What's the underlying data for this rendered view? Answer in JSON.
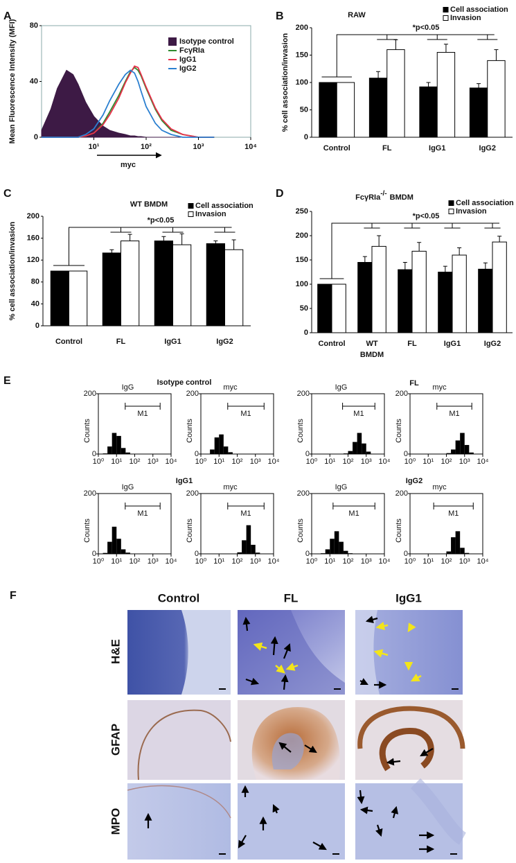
{
  "chart_data": [
    {
      "type": "line",
      "panel": "A",
      "ylabel": "Mean Fluorescence Intensity (MFI)",
      "xlabel": "myc",
      "xscale": "log",
      "xlim": [
        1,
        10000
      ],
      "ylim": [
        0,
        80
      ],
      "yticks": [
        0,
        40,
        80
      ],
      "xticks": [
        {
          "value": 10,
          "label": "10¹"
        },
        {
          "value": 100,
          "label": "10²"
        },
        {
          "value": 1000,
          "label": "10³"
        },
        {
          "value": 10000,
          "label": "10⁴"
        }
      ],
      "x": [
        1,
        1.5,
        2,
        3,
        4,
        5,
        7,
        10,
        15,
        20,
        30,
        40,
        50,
        60,
        70,
        80,
        100,
        150,
        200,
        300,
        500,
        1000,
        2000
      ],
      "legend": "upper right",
      "series": [
        {
          "name": "Isotype control",
          "color": "#3d1a45",
          "fill": true,
          "values": [
            5,
            20,
            35,
            48,
            45,
            38,
            25,
            15,
            8,
            5,
            3,
            2,
            1,
            1,
            0.5,
            0.5,
            0,
            0,
            0,
            0,
            0,
            0,
            0
          ]
        },
        {
          "name": "FcγRIa",
          "color": "#2e8b2e",
          "values": [
            0,
            0,
            0,
            0,
            0,
            0,
            1,
            3,
            10,
            18,
            30,
            40,
            47,
            50,
            48,
            44,
            35,
            20,
            12,
            5,
            2,
            0,
            0
          ]
        },
        {
          "name": "IgG1",
          "color": "#e8304a",
          "values": [
            0,
            0,
            0,
            0,
            0,
            0,
            1,
            3,
            9,
            16,
            28,
            39,
            46,
            51,
            50,
            45,
            36,
            21,
            13,
            6,
            2,
            0,
            0
          ]
        },
        {
          "name": "IgG2",
          "color": "#2a7fd0",
          "values": [
            0,
            0,
            0,
            0,
            0,
            0,
            2,
            6,
            16,
            26,
            38,
            45,
            48,
            46,
            40,
            33,
            22,
            10,
            5,
            2,
            0,
            0,
            0
          ]
        }
      ]
    },
    {
      "type": "bar",
      "panel": "B",
      "title": "RAW",
      "ylabel": "% cell association/invasion",
      "annotation": "*p<0.05",
      "legend": "upper right",
      "categories": [
        "Control",
        "FL",
        "IgG1",
        "IgG2"
      ],
      "ylim": [
        0,
        200
      ],
      "yticks": [
        0,
        50,
        100,
        150,
        200
      ],
      "series": [
        {
          "name": "Cell association",
          "color": "#000000",
          "values": [
            100,
            108,
            92,
            90
          ],
          "errors": [
            0,
            12,
            8,
            8
          ]
        },
        {
          "name": "Invasion",
          "color": "#ffffff",
          "values": [
            100,
            160,
            155,
            140
          ],
          "errors": [
            0,
            18,
            15,
            20
          ]
        }
      ]
    },
    {
      "type": "bar",
      "panel": "C",
      "title": "WT BMDM",
      "ylabel": "% cell association/invasion",
      "annotation": "*p<0.05",
      "legend": "upper right",
      "categories": [
        "Control",
        "FL",
        "IgG1",
        "IgG2"
      ],
      "ylim": [
        0,
        200
      ],
      "yticks": [
        0,
        40,
        80,
        120,
        160,
        200
      ],
      "series": [
        {
          "name": "Cell association",
          "color": "#000000",
          "values": [
            100,
            133,
            155,
            150
          ],
          "errors": [
            0,
            6,
            8,
            5
          ]
        },
        {
          "name": "Invasion",
          "color": "#ffffff",
          "values": [
            100,
            155,
            148,
            139
          ],
          "errors": [
            0,
            12,
            20,
            18
          ]
        }
      ]
    },
    {
      "type": "bar",
      "panel": "D",
      "title": [
        "FcγRIa",
        "-/-",
        "BMDM"
      ],
      "annotation": "*p<0.05",
      "legend": "upper right",
      "categories": [
        "Control",
        "WT BMDM",
        "FL",
        "IgG1",
        "IgG2"
      ],
      "ylim": [
        0,
        250
      ],
      "yticks": [
        0,
        50,
        100,
        150,
        200,
        250
      ],
      "series": [
        {
          "name": "Cell association",
          "color": "#000000",
          "values": [
            100,
            145,
            130,
            125,
            131
          ],
          "errors": [
            0,
            12,
            15,
            12,
            13
          ]
        },
        {
          "name": "Invasion",
          "color": "#ffffff",
          "values": [
            100,
            178,
            168,
            160,
            187
          ],
          "errors": [
            0,
            22,
            18,
            15,
            12
          ]
        }
      ]
    },
    {
      "type": "histogram",
      "title": "IgG",
      "ylabel": "Counts",
      "xscale": "log",
      "xlim": [
        1,
        10000
      ],
      "ylim": [
        0,
        200
      ],
      "yticks": [
        0,
        200
      ],
      "color": "#000000",
      "xticks": [
        {
          "value": 1,
          "label": "10⁰"
        },
        {
          "value": 10,
          "label": "10¹"
        },
        {
          "value": 100,
          "label": "10²"
        },
        {
          "value": 1000,
          "label": "10³"
        },
        {
          "value": 10000,
          "label": "10⁴"
        }
      ],
      "bins": [
        1,
        1.78,
        3.16,
        5.62,
        10,
        17.8,
        31.6,
        56.2,
        100,
        178,
        316,
        562,
        1000,
        1780,
        3160,
        5620,
        10000
      ],
      "values": [
        0,
        2,
        25,
        70,
        60,
        20,
        5,
        1,
        0,
        0,
        0,
        0,
        0,
        0,
        0,
        0
      ],
      "gate": {
        "label": "M1",
        "range": [
          30,
          2500
        ]
      }
    },
    {
      "type": "histogram",
      "title": "myc",
      "ylabel": "Counts",
      "xscale": "log",
      "xlim": [
        1,
        10000
      ],
      "ylim": [
        0,
        200
      ],
      "yticks": [
        0,
        200
      ],
      "color": "#000000",
      "xticks": [
        {
          "value": 1,
          "label": "10⁰"
        },
        {
          "value": 10,
          "label": "10¹"
        },
        {
          "value": 100,
          "label": "10²"
        },
        {
          "value": 1000,
          "label": "10³"
        },
        {
          "value": 10000,
          "label": "10⁴"
        }
      ],
      "bins": [
        1,
        1.78,
        3.16,
        5.62,
        10,
        17.8,
        31.6,
        56.2,
        100,
        178,
        316,
        562,
        1000,
        1780,
        3160,
        5620,
        10000
      ],
      "values": [
        0,
        1,
        15,
        55,
        65,
        25,
        6,
        1,
        0,
        0,
        0,
        0,
        0,
        0,
        0,
        0
      ],
      "gate": {
        "label": "M1",
        "range": [
          30,
          3000
        ]
      }
    },
    {
      "type": "histogram",
      "title": "IgG",
      "ylabel": "Counts",
      "xscale": "log",
      "xlim": [
        1,
        10000
      ],
      "ylim": [
        0,
        200
      ],
      "yticks": [
        0,
        200
      ],
      "color": "#000000",
      "xticks": [
        {
          "value": 1,
          "label": "10⁰"
        },
        {
          "value": 10,
          "label": "10¹"
        },
        {
          "value": 100,
          "label": "10²"
        },
        {
          "value": 1000,
          "label": "10³"
        },
        {
          "value": 10000,
          "label": "10⁴"
        }
      ],
      "bins": [
        1,
        1.78,
        3.16,
        5.62,
        10,
        17.8,
        31.6,
        56.2,
        100,
        178,
        316,
        562,
        1000,
        1780,
        3160,
        5620,
        10000
      ],
      "values": [
        0,
        0,
        0,
        0,
        0,
        0,
        0,
        2,
        10,
        40,
        70,
        35,
        8,
        1,
        0,
        0
      ],
      "gate": {
        "label": "M1",
        "range": [
          50,
          3000
        ]
      }
    },
    {
      "type": "histogram",
      "title": "myc",
      "ylabel": "Counts",
      "xscale": "log",
      "xlim": [
        1,
        10000
      ],
      "ylim": [
        0,
        200
      ],
      "yticks": [
        0,
        200
      ],
      "color": "#000000",
      "xticks": [
        {
          "value": 1,
          "label": "10⁰"
        },
        {
          "value": 10,
          "label": "10¹"
        },
        {
          "value": 100,
          "label": "10²"
        },
        {
          "value": 1000,
          "label": "10³"
        },
        {
          "value": 10000,
          "label": "10⁴"
        }
      ],
      "bins": [
        1,
        1.78,
        3.16,
        5.62,
        10,
        17.8,
        31.6,
        56.2,
        100,
        178,
        316,
        562,
        1000,
        1780,
        3160,
        5620,
        10000
      ],
      "values": [
        0,
        0,
        0,
        0,
        0,
        0,
        0,
        0,
        3,
        15,
        45,
        70,
        30,
        5,
        0,
        0
      ],
      "gate": {
        "label": "M1",
        "range": [
          30,
          2500
        ]
      }
    },
    {
      "type": "histogram",
      "title": "IgG",
      "ylabel": "Counts",
      "xscale": "log",
      "xlim": [
        1,
        10000
      ],
      "ylim": [
        0,
        200
      ],
      "yticks": [
        0,
        200
      ],
      "color": "#000000",
      "xticks": [
        {
          "value": 1,
          "label": "10⁰"
        },
        {
          "value": 10,
          "label": "10¹"
        },
        {
          "value": 100,
          "label": "10²"
        },
        {
          "value": 1000,
          "label": "10³"
        },
        {
          "value": 10000,
          "label": "10⁴"
        }
      ],
      "bins": [
        1,
        1.78,
        3.16,
        5.62,
        10,
        17.8,
        31.6,
        56.2,
        100,
        178,
        316,
        562,
        1000,
        1780,
        3160,
        5620,
        10000
      ],
      "values": [
        0,
        3,
        40,
        90,
        50,
        15,
        4,
        1,
        0,
        0,
        0,
        0,
        0,
        0,
        0,
        0
      ],
      "gate": {
        "label": "M1",
        "range": [
          30,
          2500
        ]
      }
    },
    {
      "type": "histogram",
      "title": "myc",
      "ylabel": "Counts",
      "xscale": "log",
      "xlim": [
        1,
        10000
      ],
      "ylim": [
        0,
        200
      ],
      "yticks": [
        0,
        200
      ],
      "color": "#000000",
      "xticks": [
        {
          "value": 1,
          "label": "10⁰"
        },
        {
          "value": 10,
          "label": "10¹"
        },
        {
          "value": 100,
          "label": "10²"
        },
        {
          "value": 1000,
          "label": "10³"
        },
        {
          "value": 10000,
          "label": "10⁴"
        }
      ],
      "bins": [
        1,
        1.78,
        3.16,
        5.62,
        10,
        17.8,
        31.6,
        56.2,
        100,
        178,
        316,
        562,
        1000,
        1780,
        3160,
        5620,
        10000
      ],
      "values": [
        0,
        0,
        0,
        0,
        0,
        0,
        0,
        1,
        5,
        45,
        95,
        30,
        4,
        0,
        0,
        0
      ],
      "gate": {
        "label": "M1",
        "range": [
          30,
          3000
        ]
      }
    },
    {
      "type": "histogram",
      "title": "IgG",
      "ylabel": "Counts",
      "xscale": "log",
      "xlim": [
        1,
        10000
      ],
      "ylim": [
        0,
        200
      ],
      "yticks": [
        0,
        200
      ],
      "color": "#000000",
      "xticks": [
        {
          "value": 1,
          "label": "10⁰"
        },
        {
          "value": 10,
          "label": "10¹"
        },
        {
          "value": 100,
          "label": "10²"
        },
        {
          "value": 1000,
          "label": "10³"
        },
        {
          "value": 10000,
          "label": "10⁴"
        }
      ],
      "bins": [
        1,
        1.78,
        3.16,
        5.62,
        10,
        17.8,
        31.6,
        56.2,
        100,
        178,
        316,
        562,
        1000,
        1780,
        3160,
        5620,
        10000
      ],
      "values": [
        0,
        0,
        2,
        15,
        50,
        75,
        40,
        10,
        2,
        0,
        0,
        0,
        0,
        0,
        0,
        0
      ],
      "gate": {
        "label": "M1",
        "range": [
          15,
          3000
        ]
      }
    },
    {
      "type": "histogram",
      "title": "myc",
      "ylabel": "Counts",
      "xscale": "log",
      "xlim": [
        1,
        10000
      ],
      "ylim": [
        0,
        200
      ],
      "yticks": [
        0,
        200
      ],
      "color": "#000000",
      "xticks": [
        {
          "value": 1,
          "label": "10⁰"
        },
        {
          "value": 10,
          "label": "10¹"
        },
        {
          "value": 100,
          "label": "10²"
        },
        {
          "value": 1000,
          "label": "10³"
        },
        {
          "value": 10000,
          "label": "10⁴"
        }
      ],
      "bins": [
        1,
        1.78,
        3.16,
        5.62,
        10,
        17.8,
        31.6,
        56.2,
        100,
        178,
        316,
        562,
        1000,
        1780,
        3160,
        5620,
        10000
      ],
      "values": [
        0,
        0,
        0,
        0,
        0,
        0,
        0,
        1,
        8,
        55,
        75,
        20,
        3,
        0,
        0,
        0
      ],
      "gate": {
        "label": "M1",
        "range": [
          20,
          3000
        ]
      }
    }
  ],
  "panel_e": {
    "label": "E",
    "groups": [
      "Isotype control",
      "FL",
      "IgG1",
      "IgG2"
    ]
  },
  "panel_f": {
    "label": "F",
    "columns": [
      "Control",
      "FL",
      "IgG1"
    ],
    "rows": [
      "H&E",
      "GFAP",
      "MPO"
    ]
  }
}
